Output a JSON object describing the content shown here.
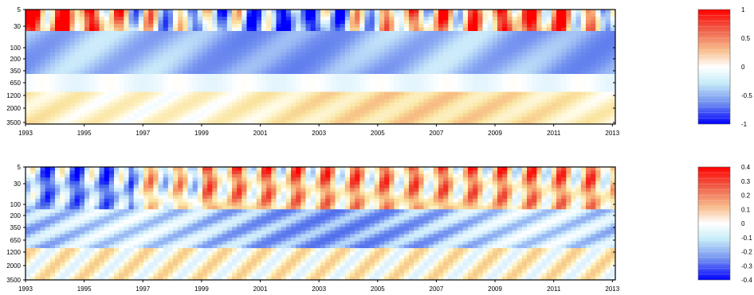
{
  "chart_data": [
    {
      "type": "heatmap",
      "title": "",
      "xlabel": "",
      "ylabel": "",
      "x_ticks": [
        "1993",
        "1995",
        "1997",
        "1999",
        "2001",
        "2003",
        "2005",
        "2007",
        "2009",
        "2011",
        "2013"
      ],
      "x_tick_values": [
        1993,
        1995,
        1997,
        1999,
        2001,
        2003,
        2005,
        2007,
        2009,
        2011,
        2013
      ],
      "xlim": [
        1993,
        2013.1
      ],
      "y_ticks": [
        "5",
        "30",
        "100",
        "200",
        "350",
        "650",
        "1200",
        "2000",
        "3500"
      ],
      "y_tick_values": [
        5,
        30,
        100,
        200,
        350,
        650,
        1200,
        2000,
        3500
      ],
      "ylim": [
        5,
        3500
      ],
      "y_inverted": true,
      "colorbar_ticks": [
        "1",
        "0.5",
        "0",
        "-0.5",
        "-1"
      ],
      "colorbar_values": [
        1,
        0.5,
        0,
        -0.5,
        -1
      ],
      "clim": [
        -1,
        1
      ],
      "colormap": [
        "#0000ff",
        "#7b96f0",
        "#d8f4fb",
        "#ffffff",
        "#fbeeb0",
        "#f39a6e",
        "#ff0000"
      ]
    },
    {
      "type": "heatmap",
      "title": "",
      "xlabel": "",
      "ylabel": "",
      "x_ticks": [
        "1993",
        "1995",
        "1997",
        "1999",
        "2001",
        "2003",
        "2005",
        "2007",
        "2009",
        "2011",
        "2013"
      ],
      "x_tick_values": [
        1993,
        1995,
        1997,
        1999,
        2001,
        2003,
        2005,
        2007,
        2009,
        2011,
        2013
      ],
      "xlim": [
        1993,
        2013.1
      ],
      "y_ticks": [
        "5",
        "30",
        "100",
        "200",
        "350",
        "650",
        "1200",
        "2000",
        "3500"
      ],
      "y_tick_values": [
        5,
        30,
        100,
        200,
        350,
        650,
        1200,
        2000,
        3500
      ],
      "ylim": [
        5,
        3500
      ],
      "y_inverted": true,
      "colorbar_ticks": [
        "0.4",
        "0.3",
        "0.2",
        "0.1",
        "0",
        "-0.1",
        "-0.2",
        "-0.3",
        "-0.4"
      ],
      "colorbar_values": [
        0.4,
        0.3,
        0.2,
        0.1,
        0,
        -0.1,
        -0.2,
        -0.3,
        -0.4
      ],
      "clim": [
        -0.4,
        0.4
      ],
      "colormap": [
        "#0000ff",
        "#7b96f0",
        "#d8f4fb",
        "#ffffff",
        "#fbeeb0",
        "#f39a6e",
        "#ff0000"
      ]
    }
  ]
}
